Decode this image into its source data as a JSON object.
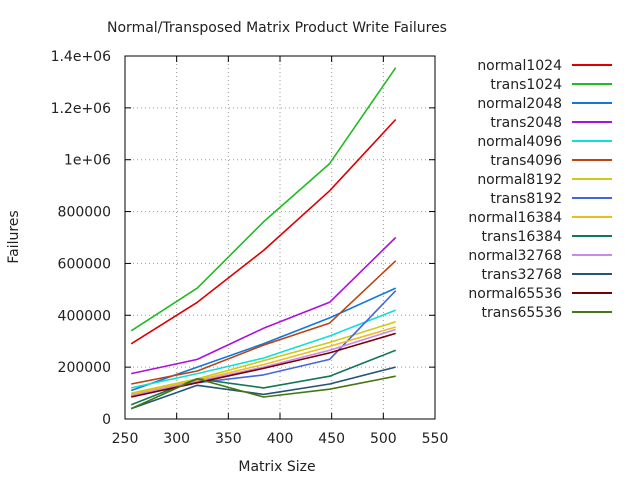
{
  "chart_data": {
    "type": "line",
    "title": "Normal/Transposed Matrix Product Write Failures",
    "xlabel": "Matrix Size",
    "ylabel": "Failures",
    "xlim": [
      250,
      550
    ],
    "ylim": [
      0,
      1400000
    ],
    "xticks": [
      250,
      300,
      350,
      400,
      450,
      500,
      550
    ],
    "xtick_labels": [
      "250",
      "300",
      "350",
      "400",
      "450",
      "500",
      "550"
    ],
    "yticks": [
      0,
      200000,
      400000,
      600000,
      800000,
      1000000,
      1200000,
      1400000
    ],
    "ytick_labels": [
      "0",
      "200000",
      "400000",
      "600000",
      "800000",
      "1e+06",
      "1.2e+06",
      "1.4e+06"
    ],
    "grid": true,
    "legend_position": "right",
    "x": [
      256,
      320,
      384,
      448,
      512
    ],
    "series": [
      {
        "name": "normal1024",
        "color": "#dd0000",
        "values": [
          290000,
          450000,
          650000,
          880000,
          1155000
        ]
      },
      {
        "name": "trans1024",
        "color": "#22bb22",
        "values": [
          340000,
          505000,
          760000,
          985000,
          1355000
        ]
      },
      {
        "name": "normal2048",
        "color": "#1177dd",
        "values": [
          110000,
          200000,
          290000,
          390000,
          505000
        ]
      },
      {
        "name": "trans2048",
        "color": "#aa11dd",
        "values": [
          175000,
          230000,
          350000,
          450000,
          700000
        ]
      },
      {
        "name": "normal4096",
        "color": "#11dddd",
        "values": [
          120000,
          175000,
          235000,
          320000,
          420000
        ]
      },
      {
        "name": "trans4096",
        "color": "#bb4411",
        "values": [
          135000,
          185000,
          285000,
          370000,
          610000
        ]
      },
      {
        "name": "normal8192",
        "color": "#cccc11",
        "values": [
          100000,
          155000,
          225000,
          295000,
          375000
        ]
      },
      {
        "name": "trans8192",
        "color": "#4466dd",
        "values": [
          90000,
          140000,
          170000,
          230000,
          495000
        ]
      },
      {
        "name": "normal16384",
        "color": "#eebb22",
        "values": [
          95000,
          150000,
          210000,
          280000,
          355000
        ]
      },
      {
        "name": "trans16384",
        "color": "#117755",
        "values": [
          55000,
          155000,
          120000,
          165000,
          265000
        ]
      },
      {
        "name": "normal32768",
        "color": "#cc88ee",
        "values": [
          90000,
          145000,
          200000,
          265000,
          345000
        ]
      },
      {
        "name": "trans32768",
        "color": "#225577",
        "values": [
          40000,
          130000,
          95000,
          135000,
          200000
        ]
      },
      {
        "name": "normal65536",
        "color": "#770000",
        "values": [
          85000,
          140000,
          195000,
          255000,
          330000
        ]
      },
      {
        "name": "trans65536",
        "color": "#447711",
        "values": [
          40000,
          155000,
          85000,
          115000,
          165000
        ]
      }
    ]
  }
}
